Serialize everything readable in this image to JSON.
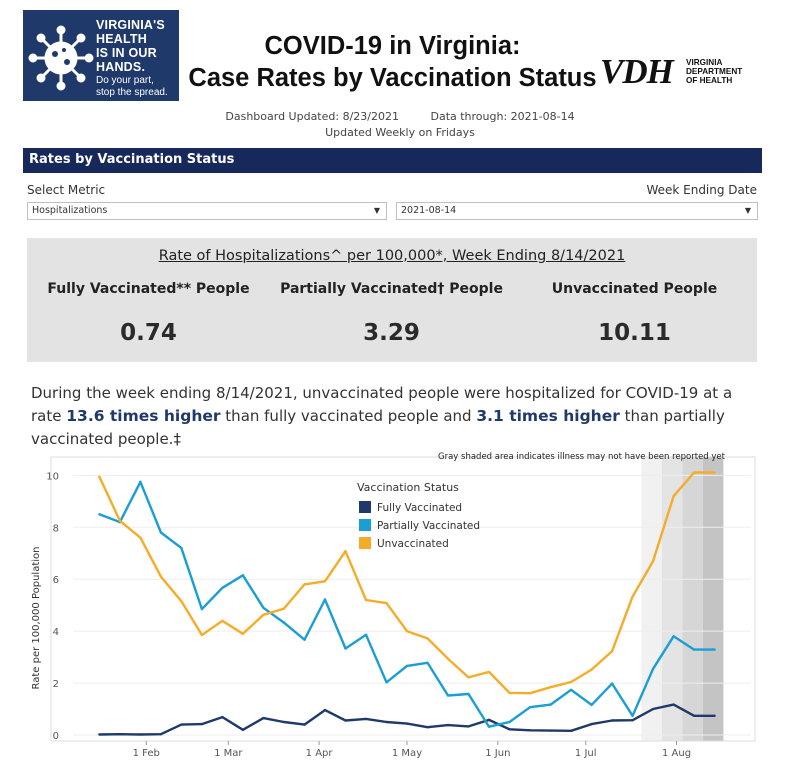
{
  "logo": {
    "lines": [
      "VIRGINIA'S",
      "HEALTH",
      "IS IN OUR",
      "HANDS."
    ],
    "sub": [
      "Do your part,",
      "stop the spread."
    ]
  },
  "title_line1": "COVID-19 in Virginia:",
  "title_line2": "Case Rates by Vaccination Status",
  "vdh": {
    "mark": "VDH",
    "name": [
      "VIRGINIA",
      "DEPARTMENT",
      "OF HEALTH"
    ]
  },
  "dashboard_updated": "Dashboard Updated: 8/23/2021",
  "data_through": "Data through: 2021-08-14",
  "update_freq": "Updated Weekly on Fridays",
  "section_title": "Rates by Vaccination Status",
  "filters": {
    "metric_label": "Select Metric",
    "metric_value": "Hospitalizations",
    "week_label": "Week Ending Date",
    "week_value": "2021-08-14"
  },
  "rates": {
    "heading": "Rate of Hospitalizations^ per 100,000*, Week Ending 8/14/2021",
    "fully_label": "Fully Vaccinated** People",
    "fully_value": "0.74",
    "partial_label": "Partially Vaccinated† People",
    "partial_value": "3.29",
    "unvax_label": "Unvaccinated People",
    "unvax_value": "10.11"
  },
  "narrative": {
    "p1": "During the week ending 8/14/2021, unvaccinated people were hospitalized for COVID-19 at a rate ",
    "h1": "13.6 times higher",
    "p2": " than fully vaccinated people and ",
    "h2": "3.1 times higher",
    "p3": " than partially vaccinated people.‡"
  },
  "chart_data": {
    "type": "line",
    "note": "Gray shaded area indicates illness may not have been reported yet",
    "ylabel": "Rate per 100,000 Population",
    "xlabel": "",
    "ylim": [
      0,
      10.4
    ],
    "yticks": [
      0,
      2,
      4,
      6,
      8,
      10
    ],
    "x_ticks": [
      {
        "label": "1 Feb",
        "date": "2021-02-01"
      },
      {
        "label": "1 Mar",
        "date": "2021-03-01"
      },
      {
        "label": "1 Apr",
        "date": "2021-04-01"
      },
      {
        "label": "1 May",
        "date": "2021-05-01"
      },
      {
        "label": "1 Jun",
        "date": "2021-06-01"
      },
      {
        "label": "1 Jul",
        "date": "2021-07-01"
      },
      {
        "label": "1 Aug",
        "date": "2021-08-01"
      }
    ],
    "x": [
      "2021-01-16",
      "2021-01-23",
      "2021-01-30",
      "2021-02-06",
      "2021-02-13",
      "2021-02-20",
      "2021-02-27",
      "2021-03-06",
      "2021-03-13",
      "2021-03-20",
      "2021-03-27",
      "2021-04-03",
      "2021-04-10",
      "2021-04-17",
      "2021-04-24",
      "2021-05-01",
      "2021-05-08",
      "2021-05-15",
      "2021-05-22",
      "2021-05-29",
      "2021-06-05",
      "2021-06-12",
      "2021-06-19",
      "2021-06-26",
      "2021-07-03",
      "2021-07-10",
      "2021-07-17",
      "2021-07-24",
      "2021-07-31",
      "2021-08-07",
      "2021-08-14"
    ],
    "gray_shading": [
      {
        "start": "2021-07-20",
        "end": "2021-07-27",
        "shade": "light"
      },
      {
        "start": "2021-07-27",
        "end": "2021-08-03",
        "shade": "lighter-mid"
      },
      {
        "start": "2021-08-03",
        "end": "2021-08-10",
        "shade": "mid"
      },
      {
        "start": "2021-08-10",
        "end": "2021-08-17",
        "shade": "dark"
      }
    ],
    "legend": {
      "title": "Vaccination Status",
      "position": "top-center"
    },
    "series": [
      {
        "name": "Fully Vaccinated",
        "color": "#1f3a6a",
        "values": [
          0.02,
          0.03,
          0.02,
          0.03,
          0.4,
          0.42,
          0.69,
          0.2,
          0.65,
          0.5,
          0.4,
          0.96,
          0.56,
          0.62,
          0.5,
          0.44,
          0.3,
          0.38,
          0.33,
          0.58,
          0.22,
          0.18,
          0.17,
          0.16,
          0.42,
          0.56,
          0.57,
          1.0,
          1.17,
          0.74,
          0.74
        ]
      },
      {
        "name": "Partially Vaccinated",
        "color": "#1a9ed4",
        "values": [
          8.5,
          8.2,
          9.75,
          7.8,
          7.2,
          4.85,
          5.67,
          6.15,
          4.9,
          4.33,
          3.67,
          5.22,
          3.33,
          3.86,
          2.03,
          2.66,
          2.78,
          1.52,
          1.58,
          0.32,
          0.5,
          1.07,
          1.17,
          1.74,
          1.16,
          1.98,
          0.74,
          2.55,
          3.8,
          3.29,
          3.29
        ]
      },
      {
        "name": "Unvaccinated",
        "color": "#f5ac28",
        "values": [
          9.95,
          8.25,
          7.6,
          6.1,
          5.15,
          3.85,
          4.4,
          3.9,
          4.63,
          4.87,
          5.8,
          5.92,
          7.08,
          5.2,
          5.08,
          4.0,
          3.72,
          2.94,
          2.22,
          2.43,
          1.62,
          1.61,
          1.84,
          2.04,
          2.52,
          3.23,
          5.33,
          6.7,
          9.2,
          10.11,
          10.11
        ]
      }
    ]
  }
}
